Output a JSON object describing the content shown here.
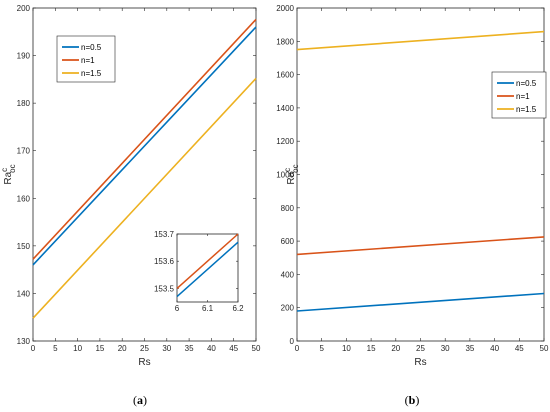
{
  "chart_data": [
    {
      "type": "line",
      "caption": "(a)",
      "xlabel": "Rs",
      "ylabel_main": "Ra",
      "ylabel_sup": "c",
      "ylabel_sub": "oc",
      "xlim": [
        0,
        50
      ],
      "ylim": [
        130,
        200
      ],
      "xticks": [
        "0",
        "5",
        "10",
        "15",
        "20",
        "25",
        "30",
        "35",
        "40",
        "45",
        "50"
      ],
      "yticks": [
        "130",
        "140",
        "150",
        "160",
        "170",
        "180",
        "190",
        "200"
      ],
      "legend_placement": "top-left",
      "grid": false,
      "series": [
        {
          "name": "n=0.5",
          "color": "#0072BD",
          "x": [
            0,
            50
          ],
          "y": [
            146,
            196
          ]
        },
        {
          "name": "n=1",
          "color": "#D95319",
          "x": [
            0,
            50
          ],
          "y": [
            147.2,
            197.6
          ]
        },
        {
          "name": "n=1.5",
          "color": "#EDB120",
          "x": [
            0,
            50
          ],
          "y": [
            134.8,
            185.2
          ]
        }
      ],
      "inset": {
        "xlim": [
          6,
          6.2
        ],
        "ylim": [
          153.45,
          153.7
        ],
        "xticks": [
          "6",
          "6.1",
          "6.2"
        ],
        "yticks": [
          "153.5",
          "153.6",
          "153.7"
        ],
        "series": [
          {
            "color": "#0072BD",
            "x": [
              6,
              6.2
            ],
            "y": [
              153.47,
              153.67
            ]
          },
          {
            "color": "#D95319",
            "x": [
              6,
              6.2
            ],
            "y": [
              153.5,
              153.7
            ]
          }
        ]
      }
    },
    {
      "type": "line",
      "caption": "(b)",
      "xlabel": "Rs",
      "ylabel_main": "Ra",
      "ylabel_sup": "c",
      "ylabel_sub": "oc",
      "xlim": [
        0,
        50
      ],
      "ylim": [
        0,
        2000
      ],
      "xticks": [
        "0",
        "5",
        "10",
        "15",
        "20",
        "25",
        "30",
        "35",
        "40",
        "45",
        "50"
      ],
      "yticks": [
        "0",
        "200",
        "400",
        "600",
        "800",
        "1000",
        "1200",
        "1400",
        "1600",
        "1800",
        "2000"
      ],
      "legend_placement": "top-right",
      "grid": false,
      "series": [
        {
          "name": "n=0.5",
          "color": "#0072BD",
          "x": [
            0,
            50
          ],
          "y": [
            180,
            285
          ]
        },
        {
          "name": "n=1",
          "color": "#D95319",
          "x": [
            0,
            50
          ],
          "y": [
            520,
            625
          ]
        },
        {
          "name": "n=1.5",
          "color": "#EDB120",
          "x": [
            0,
            50
          ],
          "y": [
            1750,
            1858
          ]
        }
      ]
    }
  ]
}
